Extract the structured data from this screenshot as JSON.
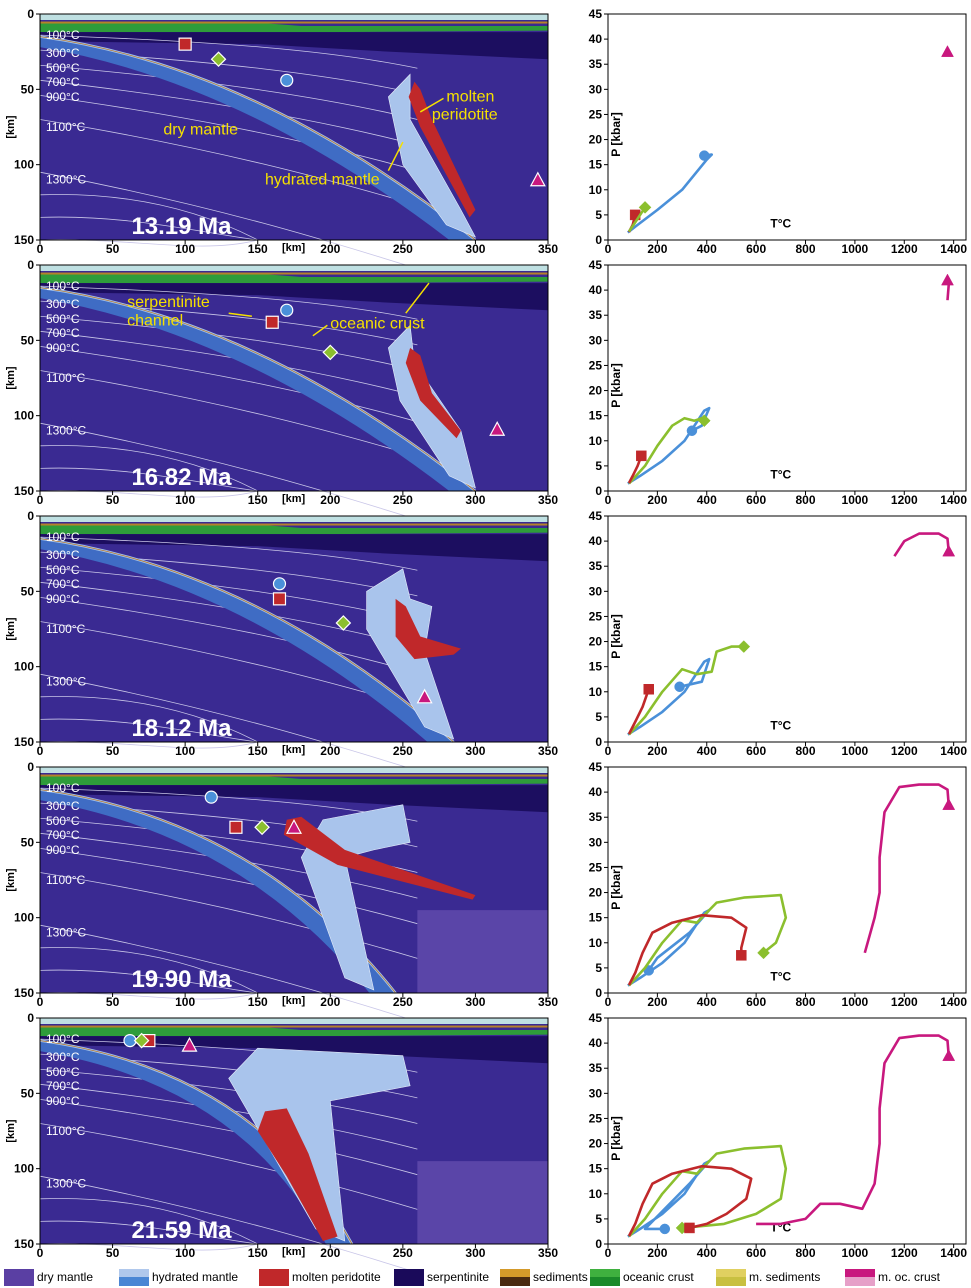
{
  "figure": {
    "section_x_ticks": [
      "0",
      "50",
      "100",
      "150",
      "200",
      "250",
      "300",
      "350"
    ],
    "section_y_ticks": [
      "0",
      "50",
      "100",
      "150"
    ],
    "section_x_unit": "[km]",
    "section_y_unit": "[km]",
    "isotherm_labels": [
      "100°C",
      "300°C",
      "500°C",
      "700°C",
      "900°C",
      "1100°C",
      "1300°C"
    ],
    "pt_x_ticks": [
      "0",
      "200",
      "400",
      "600",
      "800",
      "1000",
      "1200",
      "1400"
    ],
    "pt_y_ticks": [
      "0",
      "5",
      "10",
      "15",
      "20",
      "25",
      "30",
      "35",
      "40",
      "45"
    ],
    "pt_xlabel": "T°C",
    "pt_ylabel": "P [kbar]",
    "annotations": {
      "dry_mantle": "dry mantle",
      "hydrated_mantle": "hydrated mantle",
      "molten_line1": "molten",
      "molten_line2": "peridotite",
      "serp_line1": "serpentinite",
      "serp_line2": "channel",
      "oceanic_crust": "oceanic crust"
    }
  },
  "panels": [
    {
      "time": "13.19 Ma"
    },
    {
      "time": "16.82 Ma"
    },
    {
      "time": "18.12 Ma"
    },
    {
      "time": "19.90 Ma"
    },
    {
      "time": "21.59 Ma"
    }
  ],
  "chart_data": [
    {
      "type": "line",
      "title": "",
      "xlabel": "T°C",
      "ylabel": "P [kbar]",
      "xlim": [
        0,
        1450
      ],
      "ylim": [
        0,
        45
      ],
      "series": [
        {
          "color": "#4a90d9",
          "marker": "circle",
          "points": [
            [
              80,
              1.5
            ],
            [
              120,
              3
            ],
            [
              200,
              6
            ],
            [
              300,
              10
            ],
            [
              400,
              16
            ],
            [
              420,
              17
            ],
            [
              390,
              16.8
            ]
          ]
        },
        {
          "color": "#c0282a",
          "marker": "square",
          "points": [
            [
              85,
              1.6
            ],
            [
              100,
              3
            ],
            [
              110,
              5
            ]
          ]
        },
        {
          "color": "#8bbf2e",
          "marker": "diamond",
          "points": [
            [
              85,
              1.7
            ],
            [
              110,
              3.5
            ],
            [
              150,
              6.5
            ]
          ]
        },
        {
          "color": "#c8187e",
          "marker": "triangle",
          "points": [
            [
              1375,
              37.5
            ]
          ]
        }
      ]
    },
    {
      "type": "line",
      "title": "",
      "xlabel": "T°C",
      "ylabel": "P [kbar]",
      "xlim": [
        0,
        1450
      ],
      "ylim": [
        0,
        45
      ],
      "series": [
        {
          "color": "#4a90d9",
          "marker": "circle",
          "points": [
            [
              80,
              1.5
            ],
            [
              130,
              3
            ],
            [
              220,
              6
            ],
            [
              310,
              10
            ],
            [
              390,
              16
            ],
            [
              410,
              16.5
            ],
            [
              380,
              13
            ],
            [
              340,
              12
            ]
          ]
        },
        {
          "color": "#8bbf2e",
          "marker": "diamond",
          "points": [
            [
              85,
              1.5
            ],
            [
              150,
              5
            ],
            [
              200,
              9
            ],
            [
              260,
              13
            ],
            [
              310,
              14.5
            ],
            [
              350,
              14
            ],
            [
              380,
              14.5
            ],
            [
              390,
              14
            ]
          ]
        },
        {
          "color": "#c0282a",
          "marker": "square",
          "points": [
            [
              85,
              1.6
            ],
            [
              100,
              3
            ],
            [
              120,
              5
            ],
            [
              135,
              7
            ]
          ]
        },
        {
          "color": "#c8187e",
          "marker": "triangle",
          "points": [
            [
              1375,
              38
            ],
            [
              1380,
              41
            ],
            [
              1375,
              42
            ]
          ]
        }
      ]
    },
    {
      "type": "line",
      "title": "",
      "xlabel": "T°C",
      "ylabel": "P [kbar]",
      "xlim": [
        0,
        1450
      ],
      "ylim": [
        0,
        45
      ],
      "series": [
        {
          "color": "#4a90d9",
          "marker": "circle",
          "points": [
            [
              80,
              1.5
            ],
            [
              130,
              3
            ],
            [
              220,
              6
            ],
            [
              310,
              10
            ],
            [
              390,
              16
            ],
            [
              410,
              16.5
            ],
            [
              380,
              12
            ],
            [
              290,
              11
            ]
          ]
        },
        {
          "color": "#8bbf2e",
          "marker": "diamond",
          "points": [
            [
              85,
              1.5
            ],
            [
              150,
              5
            ],
            [
              220,
              10
            ],
            [
              300,
              14.5
            ],
            [
              360,
              13.5
            ],
            [
              420,
              14
            ],
            [
              440,
              18
            ],
            [
              500,
              19
            ],
            [
              550,
              19
            ]
          ]
        },
        {
          "color": "#c0282a",
          "marker": "square",
          "points": [
            [
              85,
              1.6
            ],
            [
              110,
              4
            ],
            [
              140,
              7
            ],
            [
              165,
              10.5
            ]
          ]
        },
        {
          "color": "#c8187e",
          "marker": "triangle",
          "points": [
            [
              1160,
              37
            ],
            [
              1200,
              40
            ],
            [
              1260,
              41.5
            ],
            [
              1340,
              41.5
            ],
            [
              1375,
              40.5
            ],
            [
              1380,
              38
            ]
          ]
        }
      ]
    },
    {
      "type": "line",
      "title": "",
      "xlabel": "T°C",
      "ylabel": "P [kbar]",
      "xlim": [
        0,
        1450
      ],
      "ylim": [
        0,
        45
      ],
      "series": [
        {
          "color": "#4a90d9",
          "marker": "circle",
          "points": [
            [
              80,
              1.5
            ],
            [
              130,
              3
            ],
            [
              220,
              6
            ],
            [
              310,
              10
            ],
            [
              390,
              16
            ],
            [
              410,
              16.5
            ],
            [
              330,
              12
            ],
            [
              200,
              7
            ],
            [
              165,
              4.5
            ]
          ]
        },
        {
          "color": "#8bbf2e",
          "marker": "diamond",
          "points": [
            [
              85,
              1.5
            ],
            [
              150,
              5
            ],
            [
              220,
              10
            ],
            [
              300,
              14.5
            ],
            [
              360,
              14
            ],
            [
              440,
              18
            ],
            [
              550,
              19
            ],
            [
              700,
              19.5
            ],
            [
              720,
              15
            ],
            [
              680,
              10
            ],
            [
              630,
              8
            ]
          ]
        },
        {
          "color": "#c0282a",
          "marker": "square",
          "points": [
            [
              85,
              1.6
            ],
            [
              110,
              4
            ],
            [
              140,
              8
            ],
            [
              180,
              12
            ],
            [
              260,
              14
            ],
            [
              380,
              15.5
            ],
            [
              500,
              15
            ],
            [
              560,
              13
            ],
            [
              540,
              9
            ],
            [
              540,
              7.5
            ]
          ]
        },
        {
          "color": "#c8187e",
          "marker": "triangle",
          "points": [
            [
              1040,
              8
            ],
            [
              1080,
              15
            ],
            [
              1100,
              20
            ],
            [
              1100,
              27
            ],
            [
              1120,
              36
            ],
            [
              1180,
              41
            ],
            [
              1260,
              41.5
            ],
            [
              1340,
              41.5
            ],
            [
              1375,
              40.5
            ],
            [
              1380,
              37.5
            ]
          ]
        }
      ]
    },
    {
      "type": "line",
      "title": "",
      "xlabel": "T°C",
      "ylabel": "P [kbar]",
      "xlim": [
        0,
        1450
      ],
      "ylim": [
        0,
        45
      ],
      "series": [
        {
          "color": "#4a90d9",
          "marker": "circle",
          "points": [
            [
              80,
              1.5
            ],
            [
              130,
              3
            ],
            [
              220,
              6
            ],
            [
              310,
              10
            ],
            [
              390,
              16
            ],
            [
              410,
              16.5
            ],
            [
              330,
              12
            ],
            [
              210,
              6
            ],
            [
              150,
              3
            ],
            [
              230,
              3
            ]
          ]
        },
        {
          "color": "#8bbf2e",
          "marker": "diamond",
          "points": [
            [
              85,
              1.5
            ],
            [
              150,
              5
            ],
            [
              220,
              10
            ],
            [
              300,
              14.5
            ],
            [
              360,
              14
            ],
            [
              440,
              18
            ],
            [
              550,
              19
            ],
            [
              700,
              19.5
            ],
            [
              720,
              15
            ],
            [
              700,
              9
            ],
            [
              600,
              6
            ],
            [
              470,
              4
            ],
            [
              300,
              3.2
            ]
          ]
        },
        {
          "color": "#c0282a",
          "marker": "square",
          "points": [
            [
              85,
              1.6
            ],
            [
              110,
              4
            ],
            [
              140,
              8
            ],
            [
              180,
              12
            ],
            [
              260,
              14
            ],
            [
              380,
              15.5
            ],
            [
              500,
              15
            ],
            [
              580,
              13
            ],
            [
              560,
              9
            ],
            [
              480,
              6
            ],
            [
              400,
              4
            ],
            [
              330,
              3.2
            ]
          ]
        },
        {
          "color": "#c8187e",
          "marker": "triangle",
          "points": [
            [
              600,
              4
            ],
            [
              700,
              4
            ],
            [
              800,
              5
            ],
            [
              860,
              8
            ],
            [
              940,
              8
            ],
            [
              1030,
              7
            ],
            [
              1080,
              12
            ],
            [
              1100,
              20
            ],
            [
              1100,
              27
            ],
            [
              1120,
              36
            ],
            [
              1180,
              41
            ],
            [
              1260,
              41.5
            ],
            [
              1340,
              41.5
            ],
            [
              1375,
              40.5
            ],
            [
              1380,
              37.5
            ]
          ]
        }
      ]
    }
  ],
  "legend": [
    {
      "label": "dry mantle",
      "top": "#5a3fa3",
      "bottom": "#5a3fa3"
    },
    {
      "label": "hydrated mantle",
      "top": "#b0c8ec",
      "bottom": "#4a86d4"
    },
    {
      "label": "molten peridotite",
      "top": "#c0282a",
      "bottom": "#c0282a"
    },
    {
      "label": "serpentinite",
      "top": "#1a0a5a",
      "bottom": "#1a0a5a"
    },
    {
      "label": "sediments",
      "top": "#d49a2a",
      "bottom": "#4a2a10"
    },
    {
      "label": "oceanic crust",
      "top": "#3fb03f",
      "bottom": "#1a8a2a"
    },
    {
      "label": "m. sediments",
      "top": "#e0d060",
      "bottom": "#c8c040"
    },
    {
      "label": "m. oc. crust",
      "top": "#c8187e",
      "bottom": "#e6a0c8"
    }
  ]
}
